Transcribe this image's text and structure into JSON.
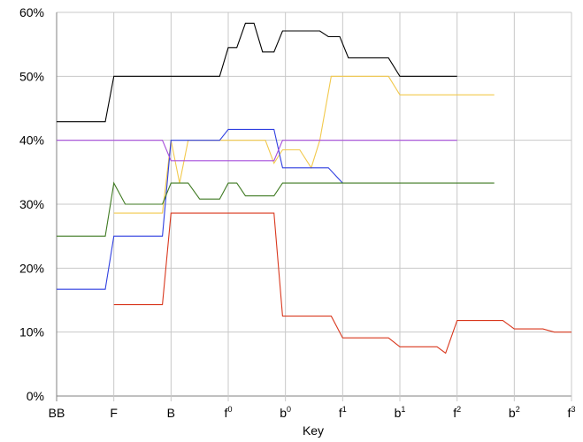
{
  "chart_data": {
    "type": "line",
    "title": "",
    "xlabel": "Key",
    "ylabel": "",
    "x_ticks": [
      {
        "label": "BB",
        "sup": ""
      },
      {
        "label": "F",
        "sup": ""
      },
      {
        "label": "B",
        "sup": ""
      },
      {
        "label": "f",
        "sup": "0"
      },
      {
        "label": "b",
        "sup": "0"
      },
      {
        "label": "f",
        "sup": "1"
      },
      {
        "label": "b",
        "sup": "1"
      },
      {
        "label": "f",
        "sup": "2"
      },
      {
        "label": "b",
        "sup": "2"
      },
      {
        "label": "f",
        "sup": "3"
      }
    ],
    "y_ticks": [
      "0%",
      "10%",
      "20%",
      "30%",
      "40%",
      "50%",
      "60%"
    ],
    "xlim": [
      0,
      9
    ],
    "ylim": [
      0,
      60
    ],
    "grid": true,
    "series": [
      {
        "color": "#000000",
        "points": [
          [
            0,
            42.9
          ],
          [
            0.85,
            42.9
          ],
          [
            1,
            50
          ],
          [
            2.85,
            50
          ],
          [
            3,
            54.5
          ],
          [
            3.15,
            54.5
          ],
          [
            3.3,
            58.3
          ],
          [
            3.45,
            58.3
          ],
          [
            3.6,
            53.8
          ],
          [
            3.8,
            53.8
          ],
          [
            3.95,
            57.1
          ],
          [
            4.6,
            57.1
          ],
          [
            4.75,
            56.2
          ],
          [
            4.95,
            56.2
          ],
          [
            5.1,
            52.9
          ],
          [
            5.8,
            52.9
          ],
          [
            6,
            50
          ],
          [
            7,
            50
          ]
        ]
      },
      {
        "color": "#f2c94c",
        "points": [
          [
            1,
            28.6
          ],
          [
            1.85,
            28.6
          ],
          [
            2,
            40
          ],
          [
            2.15,
            33.3
          ],
          [
            2.3,
            40
          ],
          [
            3.65,
            40
          ],
          [
            3.8,
            36.4
          ],
          [
            3.95,
            38.5
          ],
          [
            4.25,
            38.5
          ],
          [
            4.45,
            35.7
          ],
          [
            4.6,
            40
          ],
          [
            4.8,
            50
          ],
          [
            5.8,
            50
          ],
          [
            6,
            47.1
          ],
          [
            7.65,
            47.1
          ]
        ]
      },
      {
        "color": "#2f3fe0",
        "points": [
          [
            0,
            16.7
          ],
          [
            0.85,
            16.7
          ],
          [
            1,
            25
          ],
          [
            1.85,
            25
          ],
          [
            2,
            40
          ],
          [
            2.85,
            40
          ],
          [
            3,
            41.7
          ],
          [
            3.8,
            41.7
          ],
          [
            3.95,
            35.7
          ],
          [
            4.75,
            35.7
          ],
          [
            5,
            33.3
          ]
        ]
      },
      {
        "color": "#a64ddb",
        "points": [
          [
            0,
            40
          ],
          [
            1.85,
            40
          ],
          [
            2,
            36.8
          ],
          [
            3.8,
            36.8
          ],
          [
            3.95,
            40
          ],
          [
            7,
            40
          ]
        ]
      },
      {
        "color": "#3f7a22",
        "points": [
          [
            0,
            25
          ],
          [
            0.85,
            25
          ],
          [
            1,
            33.3
          ],
          [
            1.2,
            30
          ],
          [
            1.85,
            30
          ],
          [
            2,
            33.3
          ],
          [
            2.3,
            33.3
          ],
          [
            2.5,
            30.8
          ],
          [
            2.85,
            30.8
          ],
          [
            3,
            33.3
          ],
          [
            3.15,
            33.3
          ],
          [
            3.3,
            31.3
          ],
          [
            3.8,
            31.3
          ],
          [
            3.95,
            33.3
          ],
          [
            7.65,
            33.3
          ]
        ]
      },
      {
        "color": "#d9381e",
        "points": [
          [
            1,
            14.3
          ],
          [
            1.85,
            14.3
          ],
          [
            2,
            28.6
          ],
          [
            3.8,
            28.6
          ],
          [
            3.95,
            12.5
          ],
          [
            4.8,
            12.5
          ],
          [
            5,
            9.1
          ],
          [
            5.8,
            9.1
          ],
          [
            6,
            7.7
          ],
          [
            6.65,
            7.7
          ],
          [
            6.8,
            6.7
          ],
          [
            7,
            11.8
          ],
          [
            7.8,
            11.8
          ],
          [
            8,
            10.5
          ],
          [
            8.5,
            10.5
          ],
          [
            8.7,
            10
          ],
          [
            9,
            10
          ]
        ]
      }
    ]
  }
}
